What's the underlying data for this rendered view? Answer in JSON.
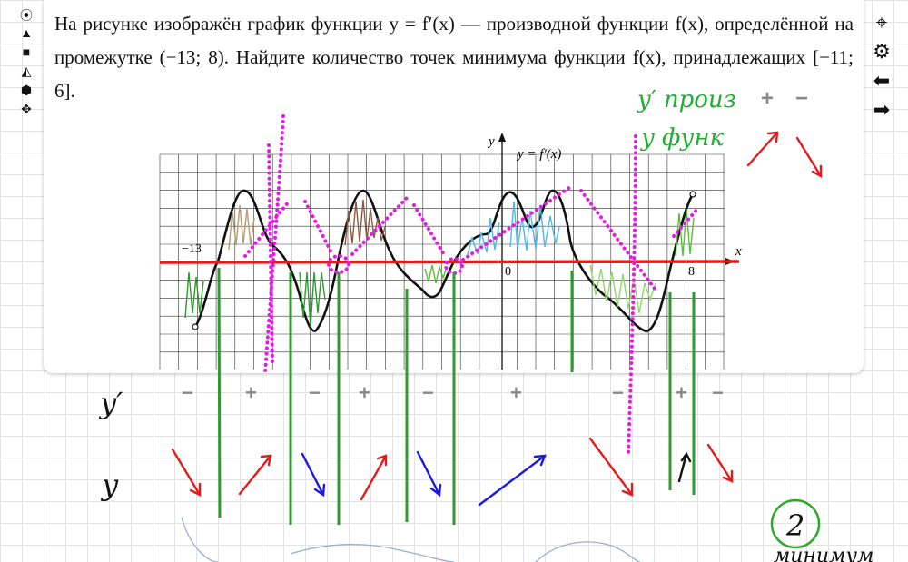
{
  "problem": {
    "text": "На рисунке изображён график функции y = f′(x) — производной функции f(x), определённой на промежутке (−13; 8). Найдите количество точек минимума функции f(x), принадлежащих [−11; 6]."
  },
  "toolbar_left": {
    "items": [
      {
        "icon": "target-icon",
        "glyph": "⦿"
      },
      {
        "icon": "triangle-icon",
        "glyph": "▲"
      },
      {
        "icon": "square-icon",
        "glyph": "■"
      },
      {
        "icon": "pyramid-icon",
        "glyph": "◭"
      },
      {
        "icon": "cube-icon",
        "glyph": "⬢"
      },
      {
        "icon": "move-icon",
        "glyph": "✥"
      }
    ]
  },
  "toolbar_right": {
    "items": [
      {
        "icon": "crosshair-icon",
        "glyph": "⌖"
      },
      {
        "icon": "gear-icon",
        "glyph": "⚙"
      },
      {
        "icon": "arrow-left-icon",
        "glyph": "⬅"
      },
      {
        "icon": "arrow-right-icon",
        "glyph": "➡"
      }
    ]
  },
  "graph": {
    "function_label": "y = f′(x)",
    "x_axis_label": "x",
    "y_axis_label": "y",
    "tick_labels": [
      "−13",
      "0",
      "8"
    ]
  },
  "annotations": {
    "row_label_derivative": "y′",
    "row_label_function": "y",
    "sign_row": [
      "−",
      "+",
      "−",
      "+",
      "−",
      "+",
      "−",
      "+",
      "−"
    ],
    "legend_derivative": "y′ произ",
    "legend_function": "y функ",
    "legend_signs": [
      "+",
      "−"
    ],
    "answer": "2",
    "answer_note": "минимум"
  },
  "colors": {
    "axis_highlight": "#e41b1b",
    "curve": "#111111",
    "magenta": "#e619e6",
    "green_line": "#2f9a2f",
    "blue_arrow": "#1a1ae6",
    "red_arrow": "#e41b1b",
    "handwriting_green": "#1fae2f"
  }
}
